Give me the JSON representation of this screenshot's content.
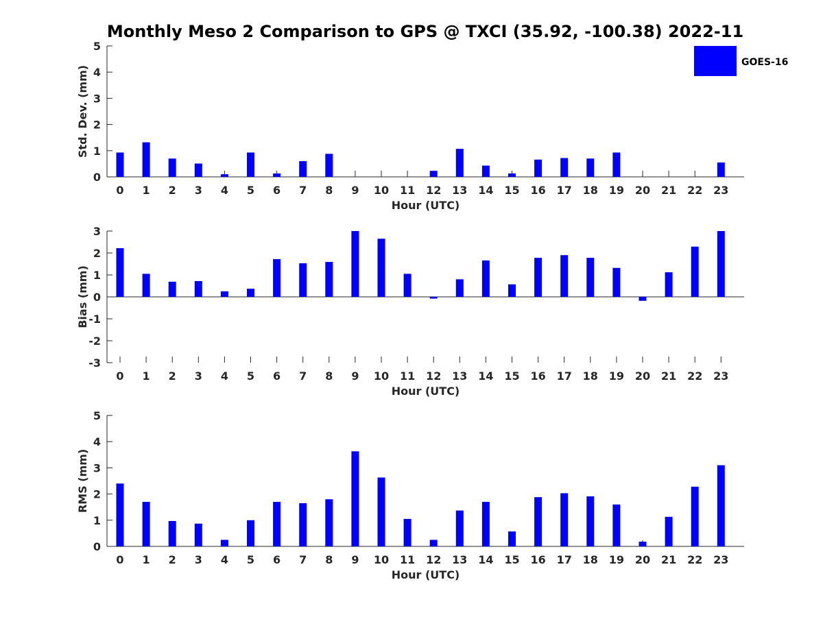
{
  "title": "Monthly Meso 2 Comparison to GPS @ TXCI (35.92, -100.38) 2022-11",
  "legend": {
    "label": "GOES-16",
    "color": "#0000ff"
  },
  "chart_data": [
    {
      "type": "bar",
      "ylabel": "Std. Dev. (mm)",
      "xlabel": "Hour (UTC)",
      "ylim": [
        0,
        5
      ],
      "yticks": [
        0,
        1,
        2,
        3,
        4,
        5
      ],
      "categories": [
        "0",
        "1",
        "2",
        "3",
        "4",
        "5",
        "6",
        "7",
        "8",
        "9",
        "10",
        "11",
        "12",
        "13",
        "14",
        "15",
        "16",
        "17",
        "18",
        "19",
        "20",
        "21",
        "22",
        "23"
      ],
      "values": [
        0.93,
        1.32,
        0.7,
        0.51,
        0.1,
        0.93,
        0.13,
        0.6,
        0.88,
        null,
        null,
        null,
        0.23,
        1.07,
        0.43,
        0.13,
        0.66,
        0.72,
        0.7,
        0.93,
        null,
        null,
        null,
        0.55
      ]
    },
    {
      "type": "bar",
      "ylabel": "Bias (mm)",
      "xlabel": "Hour (UTC)",
      "ylim": [
        -3,
        3
      ],
      "yticks": [
        -3,
        -2,
        -1,
        0,
        1,
        2,
        3
      ],
      "categories": [
        "0",
        "1",
        "2",
        "3",
        "4",
        "5",
        "6",
        "7",
        "8",
        "9",
        "10",
        "11",
        "12",
        "13",
        "14",
        "15",
        "16",
        "17",
        "18",
        "19",
        "20",
        "21",
        "22",
        "23"
      ],
      "values": [
        2.22,
        1.05,
        0.69,
        0.72,
        0.25,
        0.37,
        1.72,
        1.53,
        1.59,
        3.0,
        2.65,
        1.05,
        -0.08,
        0.8,
        1.66,
        0.57,
        1.78,
        1.9,
        1.78,
        1.32,
        -0.18,
        1.12,
        2.29,
        3.0
      ]
    },
    {
      "type": "bar",
      "ylabel": "RMS (mm)",
      "xlabel": "Hour (UTC)",
      "ylim": [
        0,
        5
      ],
      "yticks": [
        0,
        1,
        2,
        3,
        4,
        5
      ],
      "categories": [
        "0",
        "1",
        "2",
        "3",
        "4",
        "5",
        "6",
        "7",
        "8",
        "9",
        "10",
        "11",
        "12",
        "13",
        "14",
        "15",
        "16",
        "17",
        "18",
        "19",
        "20",
        "21",
        "22",
        "23"
      ],
      "values": [
        2.4,
        1.7,
        0.97,
        0.87,
        0.25,
        1.0,
        1.7,
        1.65,
        1.8,
        3.63,
        2.63,
        1.05,
        0.25,
        1.37,
        1.7,
        0.57,
        1.88,
        2.03,
        1.91,
        1.6,
        0.18,
        1.13,
        2.28,
        3.1
      ]
    }
  ]
}
